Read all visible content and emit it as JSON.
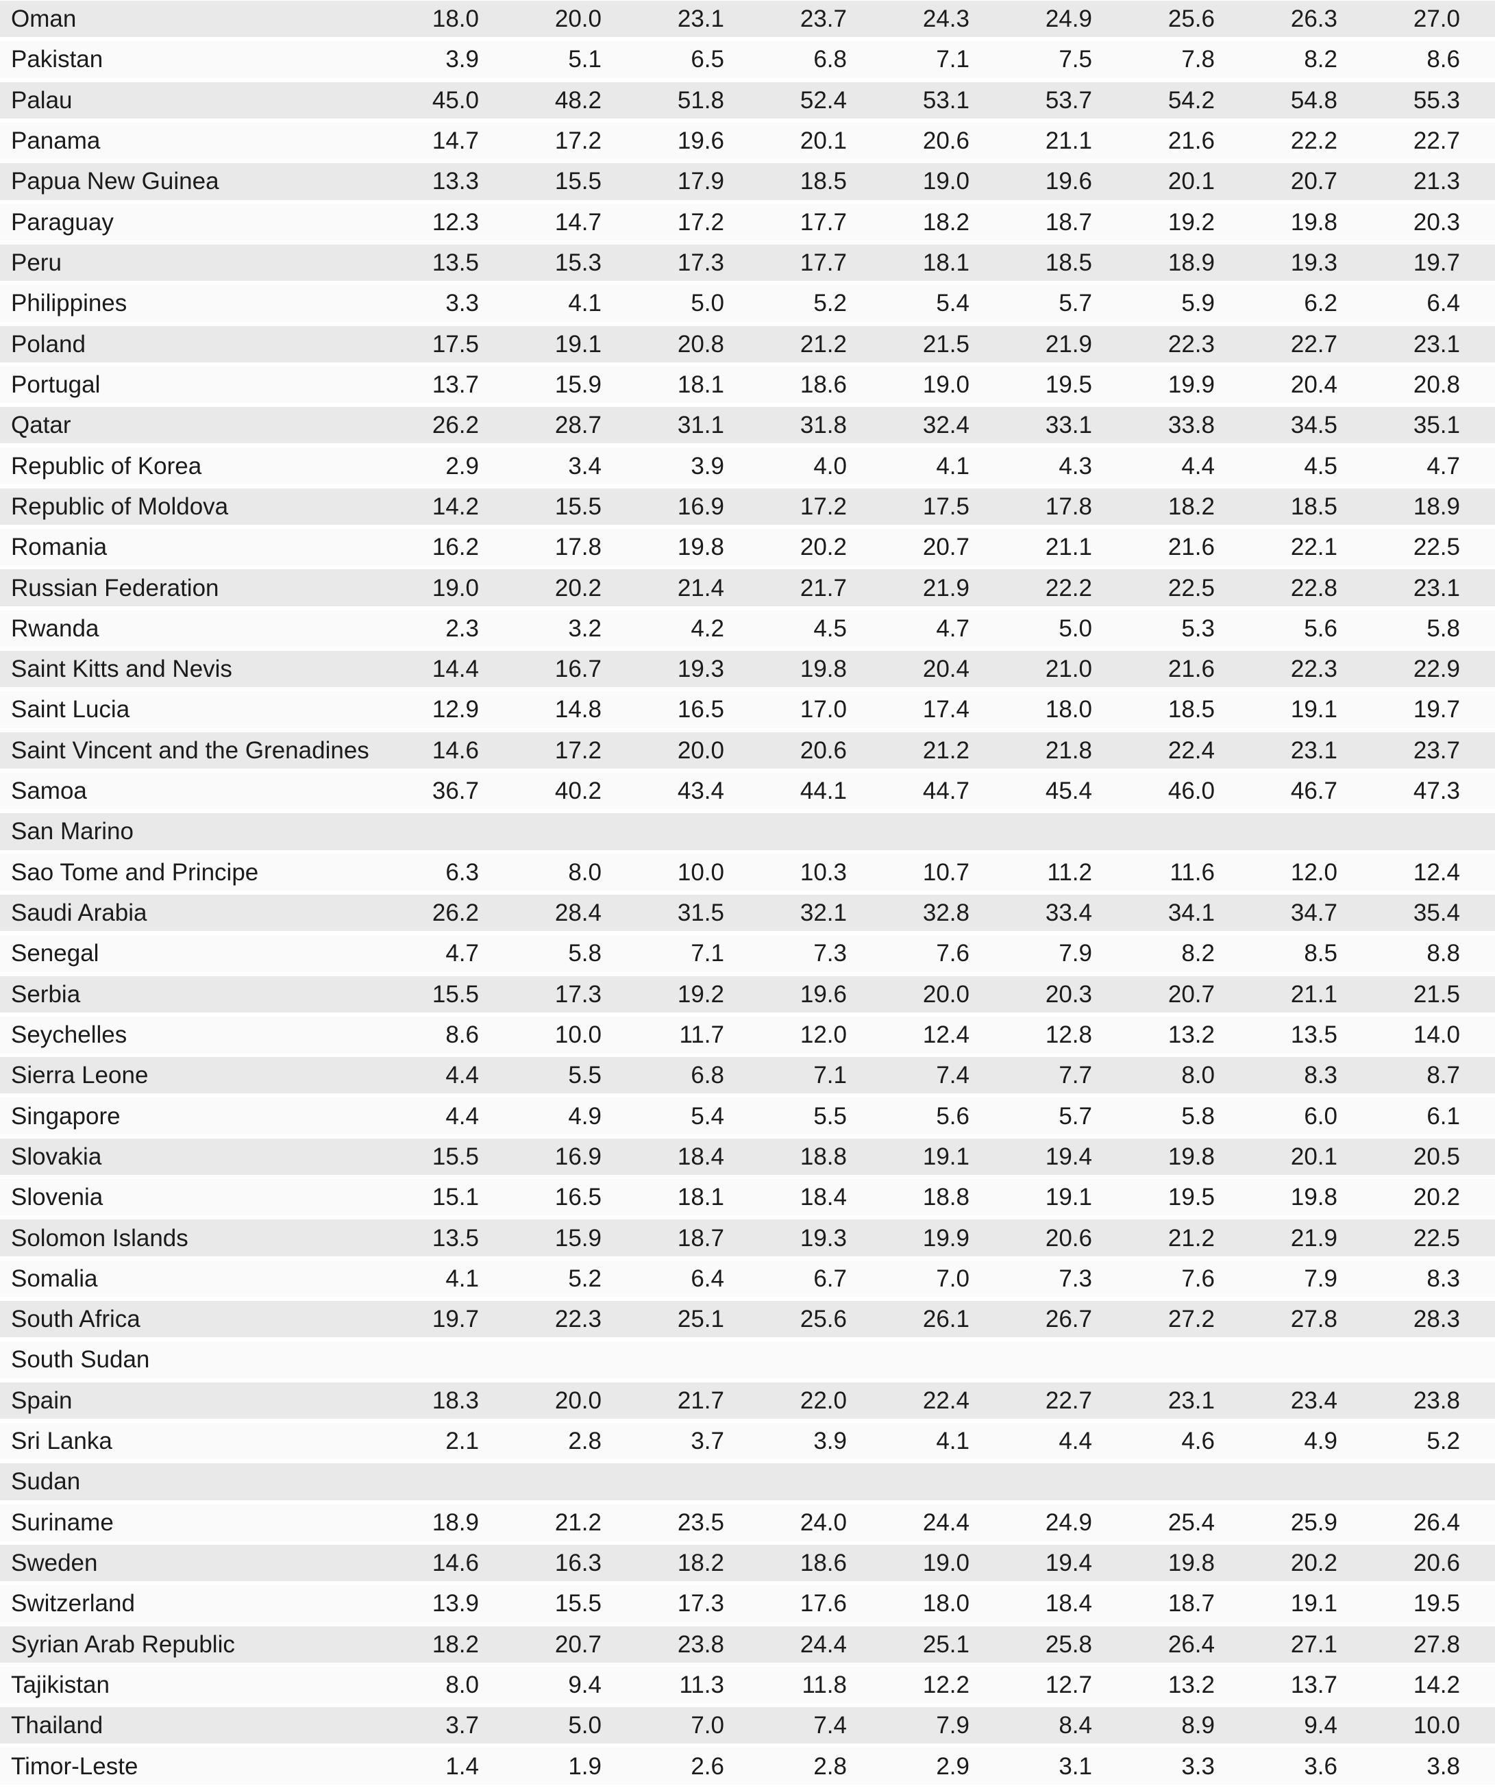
{
  "style": {
    "stripe_color": "#e9e9e9",
    "alt_row_color": "#fafafa",
    "text_color": "#1b1b1b",
    "page_background": "#ffffff"
  },
  "table": {
    "value_columns_count": 9,
    "rows": [
      {
        "country": "Oman",
        "values": [
          "18.0",
          "20.0",
          "23.1",
          "23.7",
          "24.3",
          "24.9",
          "25.6",
          "26.3",
          "27.0"
        ]
      },
      {
        "country": "Pakistan",
        "values": [
          "3.9",
          "5.1",
          "6.5",
          "6.8",
          "7.1",
          "7.5",
          "7.8",
          "8.2",
          "8.6"
        ]
      },
      {
        "country": "Palau",
        "values": [
          "45.0",
          "48.2",
          "51.8",
          "52.4",
          "53.1",
          "53.7",
          "54.2",
          "54.8",
          "55.3"
        ]
      },
      {
        "country": "Panama",
        "values": [
          "14.7",
          "17.2",
          "19.6",
          "20.1",
          "20.6",
          "21.1",
          "21.6",
          "22.2",
          "22.7"
        ]
      },
      {
        "country": "Papua New Guinea",
        "values": [
          "13.3",
          "15.5",
          "17.9",
          "18.5",
          "19.0",
          "19.6",
          "20.1",
          "20.7",
          "21.3"
        ]
      },
      {
        "country": "Paraguay",
        "values": [
          "12.3",
          "14.7",
          "17.2",
          "17.7",
          "18.2",
          "18.7",
          "19.2",
          "19.8",
          "20.3"
        ]
      },
      {
        "country": "Peru",
        "values": [
          "13.5",
          "15.3",
          "17.3",
          "17.7",
          "18.1",
          "18.5",
          "18.9",
          "19.3",
          "19.7"
        ]
      },
      {
        "country": "Philippines",
        "values": [
          "3.3",
          "4.1",
          "5.0",
          "5.2",
          "5.4",
          "5.7",
          "5.9",
          "6.2",
          "6.4"
        ]
      },
      {
        "country": "Poland",
        "values": [
          "17.5",
          "19.1",
          "20.8",
          "21.2",
          "21.5",
          "21.9",
          "22.3",
          "22.7",
          "23.1"
        ]
      },
      {
        "country": "Portugal",
        "values": [
          "13.7",
          "15.9",
          "18.1",
          "18.6",
          "19.0",
          "19.5",
          "19.9",
          "20.4",
          "20.8"
        ]
      },
      {
        "country": "Qatar",
        "values": [
          "26.2",
          "28.7",
          "31.1",
          "31.8",
          "32.4",
          "33.1",
          "33.8",
          "34.5",
          "35.1"
        ]
      },
      {
        "country": "Republic of Korea",
        "values": [
          "2.9",
          "3.4",
          "3.9",
          "4.0",
          "4.1",
          "4.3",
          "4.4",
          "4.5",
          "4.7"
        ]
      },
      {
        "country": "Republic of Moldova",
        "values": [
          "14.2",
          "15.5",
          "16.9",
          "17.2",
          "17.5",
          "17.8",
          "18.2",
          "18.5",
          "18.9"
        ]
      },
      {
        "country": "Romania",
        "values": [
          "16.2",
          "17.8",
          "19.8",
          "20.2",
          "20.7",
          "21.1",
          "21.6",
          "22.1",
          "22.5"
        ]
      },
      {
        "country": "Russian Federation",
        "values": [
          "19.0",
          "20.2",
          "21.4",
          "21.7",
          "21.9",
          "22.2",
          "22.5",
          "22.8",
          "23.1"
        ]
      },
      {
        "country": "Rwanda",
        "values": [
          "2.3",
          "3.2",
          "4.2",
          "4.5",
          "4.7",
          "5.0",
          "5.3",
          "5.6",
          "5.8"
        ]
      },
      {
        "country": "Saint Kitts and Nevis",
        "values": [
          "14.4",
          "16.7",
          "19.3",
          "19.8",
          "20.4",
          "21.0",
          "21.6",
          "22.3",
          "22.9"
        ]
      },
      {
        "country": "Saint Lucia",
        "values": [
          "12.9",
          "14.8",
          "16.5",
          "17.0",
          "17.4",
          "18.0",
          "18.5",
          "19.1",
          "19.7"
        ]
      },
      {
        "country": "Saint Vincent and the Grenadines",
        "values": [
          "14.6",
          "17.2",
          "20.0",
          "20.6",
          "21.2",
          "21.8",
          "22.4",
          "23.1",
          "23.7"
        ]
      },
      {
        "country": "Samoa",
        "values": [
          "36.7",
          "40.2",
          "43.4",
          "44.1",
          "44.7",
          "45.4",
          "46.0",
          "46.7",
          "47.3"
        ]
      },
      {
        "country": "San Marino",
        "values": []
      },
      {
        "country": "Sao Tome and Principe",
        "values": [
          "6.3",
          "8.0",
          "10.0",
          "10.3",
          "10.7",
          "11.2",
          "11.6",
          "12.0",
          "12.4"
        ]
      },
      {
        "country": "Saudi Arabia",
        "values": [
          "26.2",
          "28.4",
          "31.5",
          "32.1",
          "32.8",
          "33.4",
          "34.1",
          "34.7",
          "35.4"
        ]
      },
      {
        "country": "Senegal",
        "values": [
          "4.7",
          "5.8",
          "7.1",
          "7.3",
          "7.6",
          "7.9",
          "8.2",
          "8.5",
          "8.8"
        ]
      },
      {
        "country": "Serbia",
        "values": [
          "15.5",
          "17.3",
          "19.2",
          "19.6",
          "20.0",
          "20.3",
          "20.7",
          "21.1",
          "21.5"
        ]
      },
      {
        "country": "Seychelles",
        "values": [
          "8.6",
          "10.0",
          "11.7",
          "12.0",
          "12.4",
          "12.8",
          "13.2",
          "13.5",
          "14.0"
        ]
      },
      {
        "country": "Sierra Leone",
        "values": [
          "4.4",
          "5.5",
          "6.8",
          "7.1",
          "7.4",
          "7.7",
          "8.0",
          "8.3",
          "8.7"
        ]
      },
      {
        "country": "Singapore",
        "values": [
          "4.4",
          "4.9",
          "5.4",
          "5.5",
          "5.6",
          "5.7",
          "5.8",
          "6.0",
          "6.1"
        ]
      },
      {
        "country": "Slovakia",
        "values": [
          "15.5",
          "16.9",
          "18.4",
          "18.8",
          "19.1",
          "19.4",
          "19.8",
          "20.1",
          "20.5"
        ]
      },
      {
        "country": "Slovenia",
        "values": [
          "15.1",
          "16.5",
          "18.1",
          "18.4",
          "18.8",
          "19.1",
          "19.5",
          "19.8",
          "20.2"
        ]
      },
      {
        "country": "Solomon Islands",
        "values": [
          "13.5",
          "15.9",
          "18.7",
          "19.3",
          "19.9",
          "20.6",
          "21.2",
          "21.9",
          "22.5"
        ]
      },
      {
        "country": "Somalia",
        "values": [
          "4.1",
          "5.2",
          "6.4",
          "6.7",
          "7.0",
          "7.3",
          "7.6",
          "7.9",
          "8.3"
        ]
      },
      {
        "country": "South Africa",
        "values": [
          "19.7",
          "22.3",
          "25.1",
          "25.6",
          "26.1",
          "26.7",
          "27.2",
          "27.8",
          "28.3"
        ]
      },
      {
        "country": "South Sudan",
        "values": []
      },
      {
        "country": "Spain",
        "values": [
          "18.3",
          "20.0",
          "21.7",
          "22.0",
          "22.4",
          "22.7",
          "23.1",
          "23.4",
          "23.8"
        ]
      },
      {
        "country": "Sri Lanka",
        "values": [
          "2.1",
          "2.8",
          "3.7",
          "3.9",
          "4.1",
          "4.4",
          "4.6",
          "4.9",
          "5.2"
        ]
      },
      {
        "country": "Sudan",
        "values": []
      },
      {
        "country": "Suriname",
        "values": [
          "18.9",
          "21.2",
          "23.5",
          "24.0",
          "24.4",
          "24.9",
          "25.4",
          "25.9",
          "26.4"
        ]
      },
      {
        "country": "Sweden",
        "values": [
          "14.6",
          "16.3",
          "18.2",
          "18.6",
          "19.0",
          "19.4",
          "19.8",
          "20.2",
          "20.6"
        ]
      },
      {
        "country": "Switzerland",
        "values": [
          "13.9",
          "15.5",
          "17.3",
          "17.6",
          "18.0",
          "18.4",
          "18.7",
          "19.1",
          "19.5"
        ]
      },
      {
        "country": "Syrian Arab Republic",
        "values": [
          "18.2",
          "20.7",
          "23.8",
          "24.4",
          "25.1",
          "25.8",
          "26.4",
          "27.1",
          "27.8"
        ]
      },
      {
        "country": "Tajikistan",
        "values": [
          "8.0",
          "9.4",
          "11.3",
          "11.8",
          "12.2",
          "12.7",
          "13.2",
          "13.7",
          "14.2"
        ]
      },
      {
        "country": "Thailand",
        "values": [
          "3.7",
          "5.0",
          "7.0",
          "7.4",
          "7.9",
          "8.4",
          "8.9",
          "9.4",
          "10.0"
        ]
      },
      {
        "country": "Timor-Leste",
        "values": [
          "1.4",
          "1.9",
          "2.6",
          "2.8",
          "2.9",
          "3.1",
          "3.3",
          "3.6",
          "3.8"
        ]
      }
    ]
  }
}
